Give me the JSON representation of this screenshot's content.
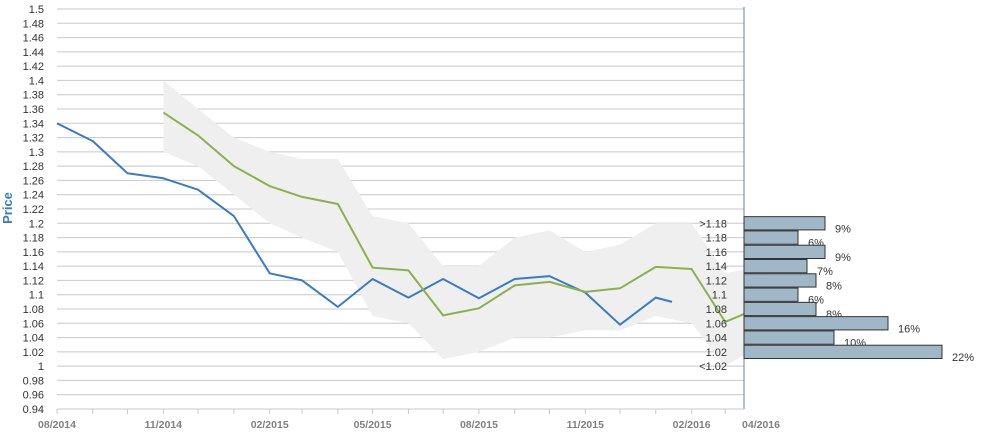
{
  "chart_data": {
    "type": "line",
    "ylabel": "Price",
    "ylim": [
      0.94,
      1.5
    ],
    "y_ticks": [
      "1.5",
      "1.48",
      "1.46",
      "1.44",
      "1.42",
      "1.4",
      "1.38",
      "1.36",
      "1.34",
      "1.32",
      "1.3",
      "1.28",
      "1.26",
      "1.24",
      "1.22",
      "1.2",
      "1.18",
      "1.16",
      "1.14",
      "1.12",
      "1.1",
      "1.08",
      "1.06",
      "1.04",
      "1.02",
      "1",
      "0.98",
      "0.96",
      "0.94"
    ],
    "x_ticks": [
      "08/2014",
      "11/2014",
      "02/2015",
      "05/2015",
      "08/2015",
      "11/2015",
      "02/2016",
      "04/2016"
    ],
    "x_range": [
      "2014-08",
      "2016-04"
    ],
    "grid": true,
    "colors": {
      "actual": "#3a7cc3",
      "forecast": "#8db04e",
      "band": "#efefef",
      "hist_bar": "#9fb7c6",
      "hist_border": "#333333",
      "grid": "#c8c8c8"
    },
    "series": [
      {
        "key": "actual",
        "x": [
          "2014-08",
          "2014-09",
          "2014-10",
          "2014-11",
          "2014-12",
          "2015-01",
          "2015-02",
          "2015-03",
          "2015-04",
          "2015-05",
          "2015-06",
          "2015-07",
          "2015-08",
          "2015-09",
          "2015-10",
          "2015-11",
          "2015-12",
          "2016-01",
          "2016-01-15"
        ],
        "y": [
          1.34,
          1.315,
          1.27,
          1.263,
          1.247,
          1.21,
          1.13,
          1.12,
          1.083,
          1.122,
          1.096,
          1.122,
          1.095,
          1.122,
          1.126,
          1.103,
          1.058,
          1.096,
          1.09
        ]
      },
      {
        "key": "forecast",
        "x": [
          "2014-11",
          "2014-12",
          "2015-01",
          "2015-02",
          "2015-03",
          "2015-04",
          "2015-05",
          "2015-06",
          "2015-07",
          "2015-08",
          "2015-09",
          "2015-10",
          "2015-11",
          "2015-12",
          "2016-01",
          "2016-02",
          "2016-03",
          "2016-04"
        ],
        "y": [
          1.355,
          1.323,
          1.28,
          1.252,
          1.237,
          1.227,
          1.138,
          1.134,
          1.071,
          1.081,
          1.113,
          1.118,
          1.104,
          1.109,
          1.139,
          1.136,
          1.062,
          1.083
        ]
      }
    ],
    "band": {
      "x": [
        "2014-11",
        "2014-12",
        "2015-01",
        "2015-02",
        "2015-03",
        "2015-04",
        "2015-05",
        "2015-06",
        "2015-07",
        "2015-08",
        "2015-09",
        "2015-10",
        "2015-11",
        "2015-12",
        "2016-01",
        "2016-02",
        "2016-03",
        "2016-04"
      ],
      "upper": [
        1.4,
        1.36,
        1.32,
        1.3,
        1.29,
        1.29,
        1.21,
        1.2,
        1.14,
        1.14,
        1.18,
        1.19,
        1.16,
        1.17,
        1.2,
        1.2,
        1.13,
        1.14
      ],
      "lower": [
        1.3,
        1.28,
        1.24,
        1.2,
        1.18,
        1.16,
        1.07,
        1.06,
        1.01,
        1.02,
        1.04,
        1.04,
        1.05,
        1.05,
        1.07,
        1.06,
        1.0,
        1.03
      ]
    },
    "histogram": [
      {
        "label": ">1.18",
        "y": 1.2,
        "pct": 9,
        "pct_label": "9%"
      },
      {
        "label": "1.18",
        "y": 1.18,
        "pct": 6,
        "pct_label": "6%"
      },
      {
        "label": "1.16",
        "y": 1.16,
        "pct": 9,
        "pct_label": "9%"
      },
      {
        "label": "1.14",
        "y": 1.14,
        "pct": 7,
        "pct_label": "7%"
      },
      {
        "label": "1.12",
        "y": 1.12,
        "pct": 8,
        "pct_label": "8%"
      },
      {
        "label": "1.1",
        "y": 1.1,
        "pct": 6,
        "pct_label": "6%"
      },
      {
        "label": "1.08",
        "y": 1.08,
        "pct": 8,
        "pct_label": "8%"
      },
      {
        "label": "1.06",
        "y": 1.06,
        "pct": 16,
        "pct_label": "16%"
      },
      {
        "label": "1.04",
        "y": 1.04,
        "pct": 10,
        "pct_label": "10%"
      },
      {
        "label": "1.02",
        "y": 1.02,
        "pct": 22,
        "pct_label": "22%"
      },
      {
        "label": "<1.02",
        "y": 1.0,
        "pct": null,
        "pct_label": ""
      }
    ]
  }
}
